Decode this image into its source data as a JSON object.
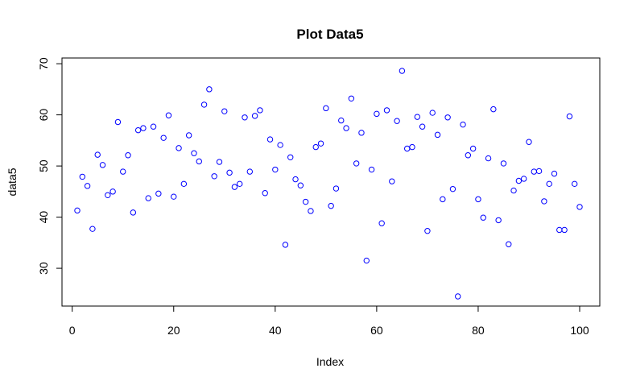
{
  "chart_data": {
    "type": "scatter",
    "title": "Plot Data5",
    "xlabel": "Index",
    "ylabel": "data5",
    "xlim": [
      1,
      100
    ],
    "ylim": [
      24.5,
      68.6
    ],
    "xticks": [
      0,
      20,
      40,
      60,
      80,
      100
    ],
    "yticks": [
      30,
      40,
      50,
      60,
      70
    ],
    "point_color": "#0000ff",
    "grid": false,
    "x": [
      1,
      2,
      3,
      4,
      5,
      6,
      7,
      8,
      9,
      10,
      11,
      12,
      13,
      14,
      15,
      16,
      17,
      18,
      19,
      20,
      21,
      22,
      23,
      24,
      25,
      26,
      27,
      28,
      29,
      30,
      31,
      32,
      33,
      34,
      35,
      36,
      37,
      38,
      39,
      40,
      41,
      42,
      43,
      44,
      45,
      46,
      47,
      48,
      49,
      50,
      51,
      52,
      53,
      54,
      55,
      56,
      57,
      58,
      59,
      60,
      61,
      62,
      63,
      64,
      65,
      66,
      67,
      68,
      69,
      70,
      71,
      72,
      73,
      74,
      75,
      76,
      77,
      78,
      79,
      80,
      81,
      82,
      83,
      84,
      85,
      86,
      87,
      88,
      89,
      90,
      91,
      92,
      93,
      94,
      95,
      96,
      97,
      98,
      99,
      100
    ],
    "y": [
      41.3,
      47.9,
      46.1,
      37.7,
      52.2,
      50.2,
      44.3,
      45.0,
      58.6,
      48.9,
      52.1,
      40.9,
      57.0,
      57.4,
      43.7,
      57.7,
      44.6,
      55.5,
      59.9,
      44.0,
      53.5,
      46.5,
      56.0,
      52.5,
      50.9,
      62.0,
      65.0,
      48.0,
      50.8,
      60.7,
      48.7,
      45.9,
      46.5,
      59.5,
      48.9,
      59.8,
      60.9,
      44.7,
      55.2,
      49.3,
      54.1,
      34.6,
      51.7,
      47.4,
      46.2,
      43.0,
      41.2,
      53.7,
      54.4,
      61.3,
      42.2,
      45.6,
      58.9,
      57.4,
      63.2,
      50.5,
      56.5,
      31.5,
      49.3,
      60.2,
      38.8,
      60.9,
      47.0,
      58.8,
      68.6,
      53.4,
      53.7,
      59.6,
      57.7,
      37.3,
      60.4,
      56.1,
      43.5,
      59.5,
      45.5,
      24.5,
      58.1,
      52.1,
      53.4,
      43.5,
      39.9,
      51.5,
      61.1,
      39.4,
      50.5,
      34.7,
      45.2,
      47.1,
      47.5,
      54.7,
      48.9,
      49.0,
      43.1,
      46.5,
      48.5,
      37.5,
      37.5,
      59.7,
      46.5,
      42.0
    ]
  }
}
